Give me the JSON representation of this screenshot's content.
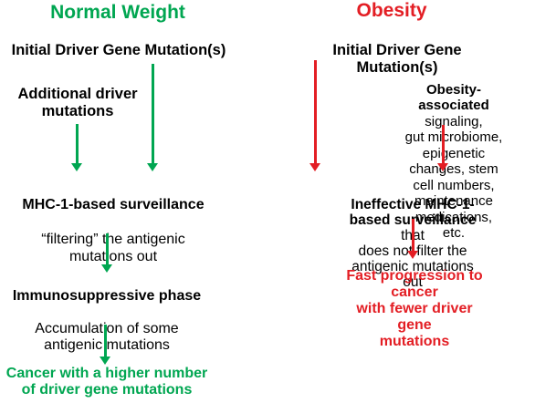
{
  "colors": {
    "green": "#00A651",
    "red": "#E31E24",
    "black": "#000000",
    "background": "#FFFFFF"
  },
  "left_column": {
    "title": "Normal Weight",
    "initial_mutation": "Initial Driver Gene Mutation(s)",
    "additional_mutations": "Additional driver\nmutations",
    "surveillance_title": "MHC-1-based surveillance",
    "surveillance_desc": "“filtering” the antigenic\nmutations out",
    "immunosuppressive_title": "Immunosuppressive phase",
    "immunosuppressive_desc": "Accumulation of some\nantigenic mutations",
    "outcome": "Cancer with a higher number\nof driver gene mutations"
  },
  "right_column": {
    "title": "Obesity",
    "initial_mutation": "Initial Driver Gene Mutation(s)",
    "factors_bold": "Obesity-associated",
    "factors_rest": " signaling,\ngut microbiome, epigenetic\nchanges, stem cell numbers,\nmaintenance medications, etc.",
    "surveillance_bold": "Ineffective MHC-1-based surveillance",
    "surveillance_rest": " that\ndoes not filter the antigenic mutations out",
    "outcome": "Fast progression to cancer\nwith fewer driver gene\nmutations"
  }
}
